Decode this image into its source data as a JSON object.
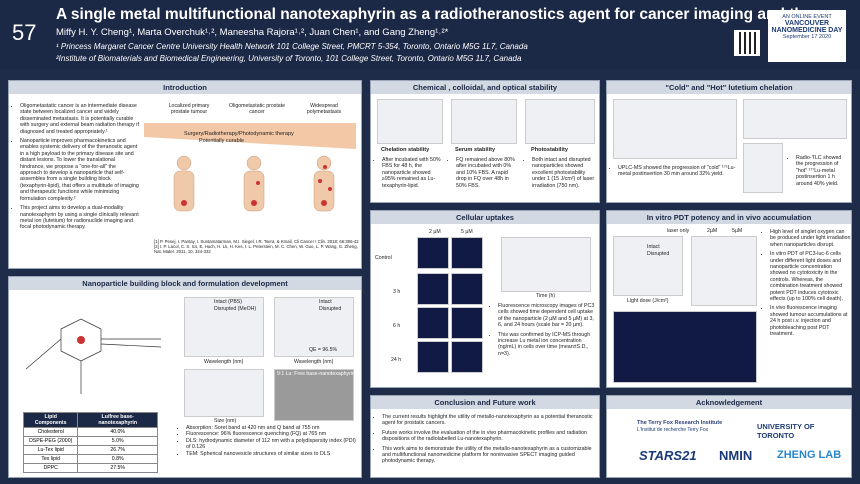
{
  "header": {
    "number": "57",
    "title": "A single metal multifunctional nanotexaphyrin as a radiotheranostics agent for cancer imaging and therapy",
    "authors": "Miffy H. Y. Cheng¹, Marta Overchuk¹˒², Maneesha Rajora¹˒², Juan Chen¹, and Gang Zheng¹˒²*",
    "affiliations": [
      "¹ Princess Margaret Cancer Centre University Health Network 101 College Street, PMCRT 5-354, Toronto, Ontario M5G 1L7, Canada",
      "²Institute of Biomaterials and Biomedical Engineering, University of Toronto, 101 College Street, Toronto, Ontario M5G 1L7, Canada"
    ],
    "badge": [
      "AN ONLINE EVENT",
      "VANCOUVER",
      "NANOMEDICINE DAY",
      "September 17 2020"
    ]
  },
  "introduction": {
    "title": "Introduction",
    "bullets": [
      "Oligometastatic cancer is an intermediate disease state between localized cancer and widely disseminated metastasis. It is potentially curable with surgery and external beam radiation therapy if diagnosed and treated appropriately.¹",
      "Nanoparticle improves pharmacokinetics and enables systemic delivery of the theranostic agent in a high payload to the primary disease site and distant lesions. To lower the translational hindrance, we propose a \"one-for-all\" the approach to develop a nanoparticle that self-assembles from a single building block (texaphyrin-lipid), that offers a multitude of imaging and therapeutic functions while minimizing formulation complexity.²",
      "This project aims to develop a dual-modality nanotexaphyrin by using a single clinically relevant metal ion (lutetium) for radionuclide imaging and focal photodynamic therapy."
    ],
    "figure_labels": [
      "Localized primary prostate tumour",
      "Oligometastatic prostate cancer",
      "Widespread polymetastasis",
      "Surgery/Radiotherapy/Photodynamic therapy",
      "Potentially curable"
    ],
    "references": "[1] P. Pesej, I. Pantay, I. Suntamatarman, M.I. Siegel, I.R. Tsera, & Kmail, Cli Cancer I Clin. 2018; 66:396-42 [2] I. P. Lacol, C. S. Ics, E. Huch, H. Lk, H. Kes, I. L. Peterstein, M. C. Chen, W. Guo, L. P. Wang, G. Zheng, Nat. Mater. 2011, 10, 324-332"
  },
  "nanoparticle": {
    "title": "Nanoparticle building block and formulation development",
    "figure_labels": [
      "Intact (PBS)",
      "Disrupted (MeOH)",
      "Intact",
      "Disrupted",
      "QE = 96.5%",
      "Wavelength (nm)",
      "Size (nm)",
      "9:1 Lu: Free base-nanotexaphyrin"
    ],
    "table": {
      "header": [
        "Lipid Components",
        "Lu/free base-nanotexaphyrin"
      ],
      "rows": [
        [
          "Cholesterol",
          "40.0%"
        ],
        [
          "DSPE-PEG (2000)",
          "5.0%"
        ],
        [
          "Lu-Tex lipid",
          "26.7%"
        ],
        [
          "Tex lipid",
          "0.8%"
        ],
        [
          "DPPC",
          "27.5%"
        ]
      ]
    },
    "bullets": [
      "Absorption: Soret band at 420 nm and Q band at 755 nm",
      "Fluorescence: 96% fluorescence quenching (FQ) at 765 nm",
      "DLS: hydrodynamic diameter of 112 nm with a polydispersity index (PDI) of 0.126",
      "TEM: Spherical nanovesicle structures of similar sizes to DLS"
    ]
  },
  "stability": {
    "title": "Chemical , colloidal, and optical stability",
    "subtitles": [
      "Chelation stability",
      "Serum stability",
      "Photostability"
    ],
    "bullets": [
      "After incubated with 50% FBS for 48 h, the nanoparticle showed ≥95% remained as Lu-texaphyrin-lipid.",
      "FQ remained above 80% after incubated with 0% and 10% FBS. A rapid drop in FQ over 48h in 50% FBS.",
      "Both intact and disrupted nanoparticles showed excellent photostability under 1 (15 J/cm²) of laser irradiation (750 nm)."
    ]
  },
  "chelation": {
    "title": "\"Cold\" and \"Hot\" lutetium chelation",
    "bullets": [
      "UPLC-MS showed the progression of \"cold\" ¹⁷⁵Lu-metal postinsertion 30 min around 32% yield.",
      "Radio-TLC showed the progression of \"hot\" ¹⁷⁷Lu-metal postinsertion 1 h around 40% yield."
    ]
  },
  "uptake": {
    "title": "Cellular uptakes",
    "figure_labels": [
      "2 µM",
      "5 µM",
      "Control",
      "3 h",
      "6 h",
      "24 h",
      "Time (h)"
    ],
    "bullets": [
      "Fluorescence microscopy images of PC3 cells showed time dependent cell uptake of the nanoparticle (2 µM and 5 µM) at 3, 6, and 24 hours (scale bar = 20 µm).",
      "This was confirmed by ICP-MS through increase Lu metal ion concentration (ng/mL) in cells over time (mean±S.D., n=3)."
    ]
  },
  "pdt": {
    "title": "In vitro PDT potency and in vivo accumulation",
    "figure_labels": [
      "laser only",
      "2µM",
      "5µM",
      "Intact",
      "Disrupted",
      "Light dose (J/cm²)"
    ],
    "bullets": [
      "High level of singlet oxygen can be produced under light irradiation when nanoparticles disrupt.",
      "In vitro PDT of PC3-luc-6 cells under different light doses and nanoparticle concentration showed no cytotoxicity in the controls. Whereas, the combination treatment showed potent PDT induces cytotoxic effects (up to 100% cell death).",
      "In vivo fluorescence imaging showed tumour accumulations at 24 h post i.v. injection and photobleaching post PDT treatment."
    ]
  },
  "conclusion": {
    "title": "Conclusion and Future work",
    "bullets": [
      "The current results highlight the utility of metallo-nanotexaphyrin as a potential theranostic agent for prostatic cancers.",
      "Future works involve the evaluation of the in vivo pharmacokinetic profiles and radiation dispositions of the radiolabelled Lu-nanotexaphyrin.",
      "This work aims to demonstrate the utility of the metallo-nanotexaphyrin as a customizable and multifunctional nanomedicine platform for noninvasive SPECT imaging guided photodynamic therapy."
    ]
  },
  "acknowledgement": {
    "title": "Acknowledgement",
    "logos": [
      "The Terry Fox Research Institute",
      "L'Institut de recherche Terry Fox",
      "UNIVERSITY OF TORONTO",
      "STARS21",
      "NMIN",
      "ZHENG LAB"
    ]
  }
}
